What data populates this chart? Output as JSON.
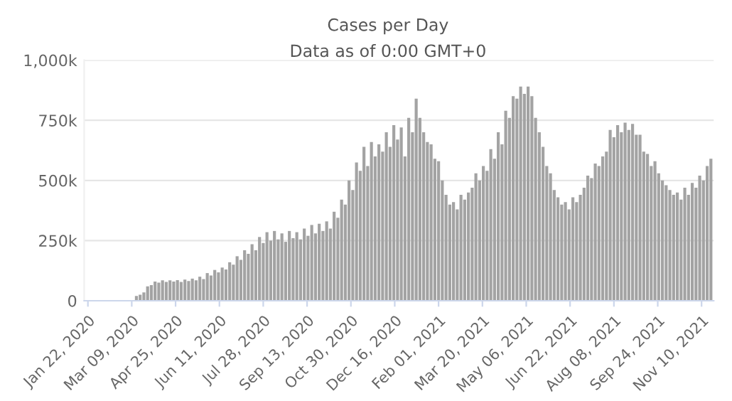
{
  "chart_data": {
    "type": "bar",
    "title": "Cases per Day",
    "subtitle": "Data as of 0:00 GMT+0",
    "color": "#a3a3a3",
    "grid": "y",
    "xlim": [
      "2020-01-18",
      "2021-11-23"
    ],
    "xticks": [
      {
        "value": "2020-01-22",
        "label": "Jan 22, 2020"
      },
      {
        "value": "2020-03-09",
        "label": "Mar 09, 2020"
      },
      {
        "value": "2020-04-25",
        "label": "Apr 25, 2020"
      },
      {
        "value": "2020-06-11",
        "label": "Jun 11, 2020"
      },
      {
        "value": "2020-07-28",
        "label": "Jul 28, 2020"
      },
      {
        "value": "2020-09-13",
        "label": "Sep 13, 2020"
      },
      {
        "value": "2020-10-30",
        "label": "Oct 30, 2020"
      },
      {
        "value": "2020-12-16",
        "label": "Dec 16, 2020"
      },
      {
        "value": "2021-02-01",
        "label": "Feb 01, 2021"
      },
      {
        "value": "2021-03-20",
        "label": "Mar 20, 2021"
      },
      {
        "value": "2021-05-06",
        "label": "May 06, 2021"
      },
      {
        "value": "2021-06-22",
        "label": "Jun 22, 2021"
      },
      {
        "value": "2021-08-08",
        "label": "Aug 08, 2021"
      },
      {
        "value": "2021-09-24",
        "label": "Sep 24, 2021"
      },
      {
        "value": "2021-11-10",
        "label": "Nov 10, 2021"
      }
    ],
    "ylim": [
      0,
      1000
    ],
    "yticks": [
      0,
      {
        "value": 250,
        "label": "250k"
      },
      {
        "value": 500,
        "label": "500k"
      },
      {
        "value": 750,
        "label": "750k"
      },
      {
        "value": 1000,
        "label": "1,000k"
      }
    ],
    "x": [
      "2020-01-22",
      "2020-01-26",
      "2020-01-30",
      "2020-02-03",
      "2020-02-07",
      "2020-02-11",
      "2020-02-15",
      "2020-02-19",
      "2020-02-23",
      "2020-02-27",
      "2020-03-02",
      "2020-03-06",
      "2020-03-10",
      "2020-03-14",
      "2020-03-18",
      "2020-03-22",
      "2020-03-26",
      "2020-03-30",
      "2020-04-03",
      "2020-04-07",
      "2020-04-11",
      "2020-04-15",
      "2020-04-19",
      "2020-04-23",
      "2020-04-27",
      "2020-05-01",
      "2020-05-05",
      "2020-05-09",
      "2020-05-13",
      "2020-05-17",
      "2020-05-21",
      "2020-05-25",
      "2020-05-29",
      "2020-06-02",
      "2020-06-06",
      "2020-06-10",
      "2020-06-14",
      "2020-06-18",
      "2020-06-22",
      "2020-06-26",
      "2020-06-30",
      "2020-07-04",
      "2020-07-08",
      "2020-07-12",
      "2020-07-16",
      "2020-07-20",
      "2020-07-24",
      "2020-07-28",
      "2020-08-01",
      "2020-08-05",
      "2020-08-09",
      "2020-08-13",
      "2020-08-17",
      "2020-08-21",
      "2020-08-25",
      "2020-08-29",
      "2020-09-02",
      "2020-09-06",
      "2020-09-10",
      "2020-09-14",
      "2020-09-18",
      "2020-09-22",
      "2020-09-26",
      "2020-09-30",
      "2020-10-04",
      "2020-10-08",
      "2020-10-12",
      "2020-10-16",
      "2020-10-20",
      "2020-10-24",
      "2020-10-28",
      "2020-11-01",
      "2020-11-05",
      "2020-11-09",
      "2020-11-13",
      "2020-11-17",
      "2020-11-21",
      "2020-11-25",
      "2020-11-29",
      "2020-12-03",
      "2020-12-07",
      "2020-12-11",
      "2020-12-15",
      "2020-12-19",
      "2020-12-23",
      "2020-12-27",
      "2020-12-31",
      "2021-01-04",
      "2021-01-08",
      "2021-01-12",
      "2021-01-16",
      "2021-01-20",
      "2021-01-24",
      "2021-01-28",
      "2021-02-01",
      "2021-02-05",
      "2021-02-09",
      "2021-02-13",
      "2021-02-17",
      "2021-02-21",
      "2021-02-25",
      "2021-03-01",
      "2021-03-05",
      "2021-03-09",
      "2021-03-13",
      "2021-03-17",
      "2021-03-21",
      "2021-03-25",
      "2021-03-29",
      "2021-04-02",
      "2021-04-06",
      "2021-04-10",
      "2021-04-14",
      "2021-04-18",
      "2021-04-22",
      "2021-04-26",
      "2021-04-30",
      "2021-05-04",
      "2021-05-08",
      "2021-05-12",
      "2021-05-16",
      "2021-05-20",
      "2021-05-24",
      "2021-05-28",
      "2021-06-01",
      "2021-06-05",
      "2021-06-09",
      "2021-06-13",
      "2021-06-17",
      "2021-06-21",
      "2021-06-25",
      "2021-06-29",
      "2021-07-03",
      "2021-07-07",
      "2021-07-11",
      "2021-07-15",
      "2021-07-19",
      "2021-07-23",
      "2021-07-27",
      "2021-07-31",
      "2021-08-04",
      "2021-08-08",
      "2021-08-12",
      "2021-08-16",
      "2021-08-20",
      "2021-08-24",
      "2021-08-28",
      "2021-09-01",
      "2021-09-05",
      "2021-09-09",
      "2021-09-13",
      "2021-09-17",
      "2021-09-21",
      "2021-09-25",
      "2021-09-29",
      "2021-10-03",
      "2021-10-07",
      "2021-10-11",
      "2021-10-15",
      "2021-10-19",
      "2021-10-23",
      "2021-10-27",
      "2021-10-31",
      "2021-11-04",
      "2021-11-08",
      "2021-11-12",
      "2021-11-16",
      "2021-11-20"
    ],
    "values": [
      0,
      0,
      0,
      0,
      0,
      0,
      0,
      0,
      0,
      0,
      0,
      0,
      0,
      20,
      25,
      35,
      60,
      65,
      80,
      75,
      85,
      78,
      85,
      80,
      86,
      78,
      88,
      82,
      92,
      85,
      100,
      90,
      115,
      105,
      128,
      118,
      138,
      130,
      160,
      150,
      185,
      170,
      210,
      195,
      235,
      210,
      265,
      240,
      285,
      250,
      290,
      255,
      280,
      245,
      290,
      260,
      285,
      255,
      300,
      270,
      315,
      280,
      320,
      290,
      330,
      300,
      370,
      345,
      420,
      400,
      500,
      460,
      575,
      540,
      640,
      560,
      660,
      600,
      650,
      620,
      700,
      640,
      730,
      670,
      720,
      600,
      760,
      700,
      840,
      760,
      700,
      660,
      650,
      590,
      580,
      500,
      440,
      400,
      410,
      380,
      440,
      420,
      450,
      470,
      530,
      500,
      560,
      540,
      630,
      590,
      700,
      650,
      790,
      760,
      850,
      840,
      890,
      860,
      890,
      850,
      760,
      700,
      640,
      560,
      530,
      460,
      430,
      400,
      410,
      380,
      430,
      410,
      440,
      470,
      520,
      510,
      570,
      560,
      600,
      620,
      710,
      680,
      730,
      700,
      740,
      710,
      735,
      690,
      690,
      620,
      610,
      560,
      580,
      530,
      500,
      480,
      460,
      440,
      450,
      420,
      470,
      440,
      490,
      470,
      520,
      500,
      560,
      590
    ]
  }
}
